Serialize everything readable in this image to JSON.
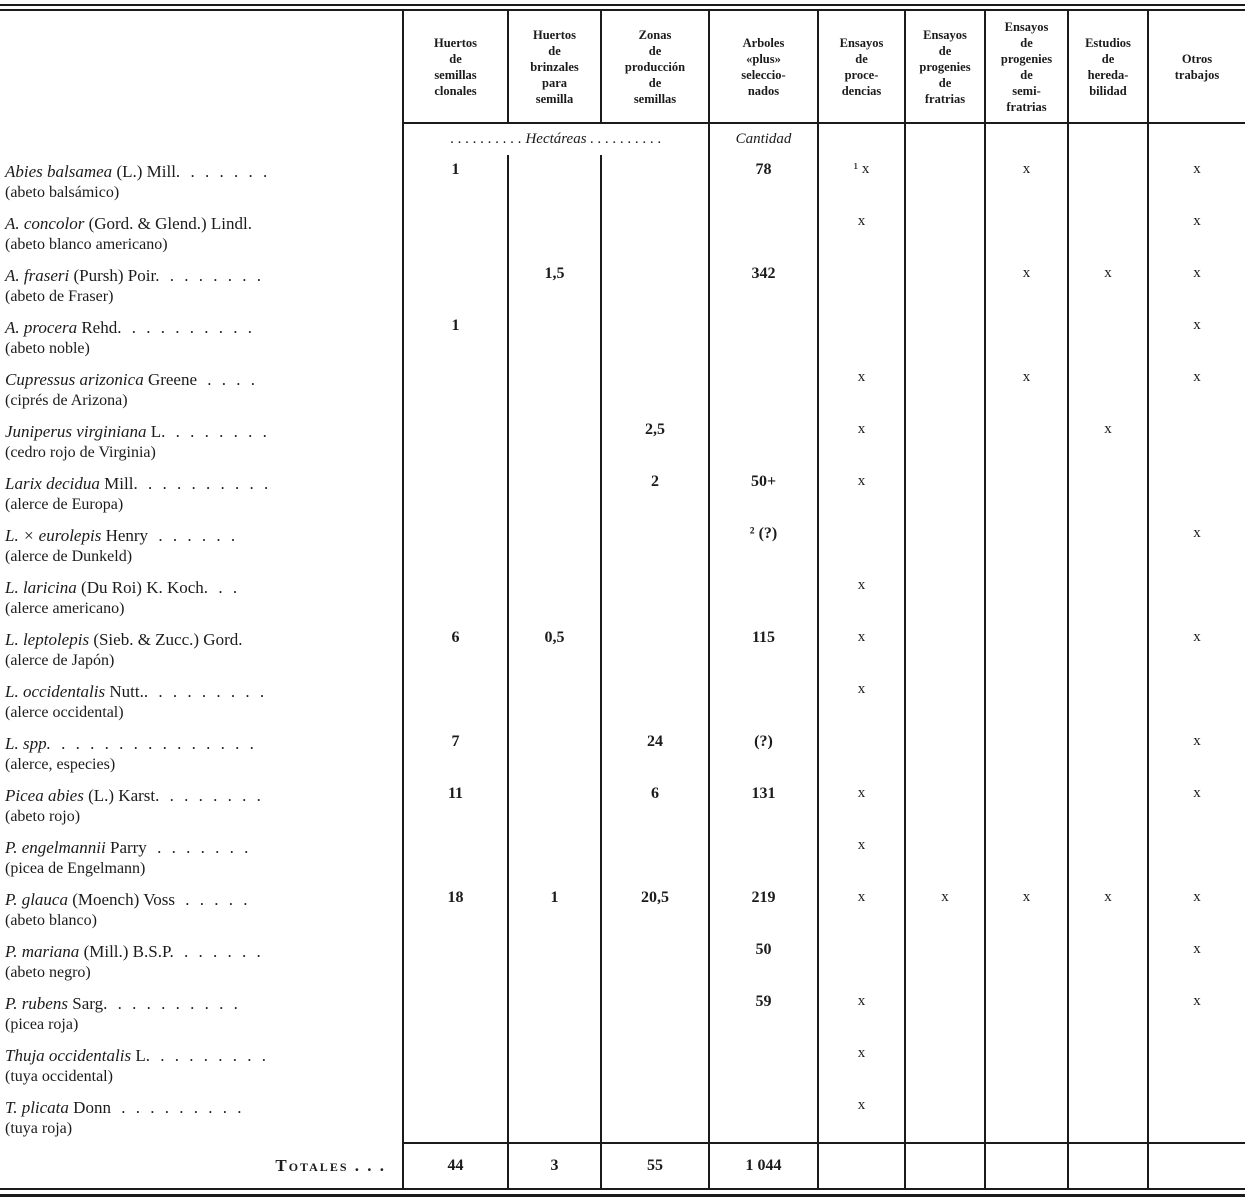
{
  "page": {
    "background": "#ffffff",
    "ink": "#1b1b1b"
  },
  "table": {
    "column_keys": [
      "huertos-semillas-clonales",
      "huertos-brinzales",
      "zonas-produccion",
      "arboles-plus",
      "ensayos-procedencias",
      "ensayos-progenies-fratrias",
      "ensayos-progenies-semifratrias",
      "estudios-heredabilidad",
      "otros-trabajos"
    ],
    "headers": [
      "Huertos\nde\nsemillas\nclonales",
      "Huertos\nde\nbrinzales\npara\nsemilla",
      "Zonas\nde\nproducción\nde\nsemillas",
      "Arboles\n«plus»\nseleccio-\nnados",
      "Ensayos\nde\nproce-\ndencias",
      "Ensayos\nde\nprogenies\nde\nfratrias",
      "Ensayos\nde\nprogenies\nde\nsemi-\nfratrias",
      "Estudios\nde\nhereda-\nbilidad",
      "Otros\ntrabajos"
    ],
    "subheader": {
      "hectareas": ". . . . . . . . . .  Hectáreas  . . . . . . . . . .",
      "cantidad": "Cantidad"
    },
    "rows": [
      {
        "latin": "Abies balsamea",
        "author": "(L.) Mill.",
        "dots": ". . . . . .",
        "common": "(abeto balsámico)",
        "values": [
          "1",
          "",
          "",
          "78",
          "¹ x",
          "",
          "x",
          "",
          "x"
        ]
      },
      {
        "latin": "A. concolor",
        "author": "(Gord. & Glend.) Lindl.",
        "dots": "",
        "common": "(abeto blanco americano)",
        "values": [
          "",
          "",
          "",
          "",
          "x",
          "",
          "",
          "",
          "x"
        ]
      },
      {
        "latin": "A. fraseri",
        "author": "(Pursh) Poir.",
        "dots": ". . . . . . .",
        "common": "(abeto de Fraser)",
        "values": [
          "",
          "1,5",
          "",
          "342",
          "",
          "",
          "x",
          "x",
          "x"
        ]
      },
      {
        "latin": "A. procera",
        "author": "Rehd.",
        "dots": ". . . . . . . . .",
        "common": "(abeto noble)",
        "values": [
          "1",
          "",
          "",
          "",
          "",
          "",
          "",
          "",
          "x"
        ]
      },
      {
        "latin": "Cupressus arizonica",
        "author": "Greene",
        "dots": ". . . .",
        "common": "(ciprés de Arizona)",
        "values": [
          "",
          "",
          "",
          "",
          "x",
          "",
          "x",
          "",
          "x"
        ]
      },
      {
        "latin": "Juniperus virginiana",
        "author": "L.",
        "dots": ". . . . . . .",
        "common": "(cedro rojo de Virginia)",
        "values": [
          "",
          "",
          "2,5",
          "",
          "x",
          "",
          "",
          "x",
          ""
        ]
      },
      {
        "latin": "Larix decidua",
        "author": "Mill.",
        "dots": ". . . . . . . . .",
        "common": "(alerce de Europa)",
        "values": [
          "",
          "",
          "2",
          "50+",
          "x",
          "",
          "",
          "",
          ""
        ]
      },
      {
        "latin": "L. × eurolepis",
        "author": "Henry",
        "dots": ". . . . . .",
        "common": "(alerce de Dunkeld)",
        "values": [
          "",
          "",
          "",
          "² (?)",
          "",
          "",
          "",
          "",
          "x"
        ]
      },
      {
        "latin": "L. laricina",
        "author": "(Du Roi) K. Koch.",
        "dots": ". .",
        "common": "(alerce americano)",
        "values": [
          "",
          "",
          "",
          "",
          "x",
          "",
          "",
          "",
          ""
        ]
      },
      {
        "latin": "L. leptolepis",
        "author": "(Sieb. & Zucc.) Gord.",
        "dots": "",
        "common": "(alerce de Japón)",
        "values": [
          "6",
          "0,5",
          "",
          "115",
          "x",
          "",
          "",
          "",
          "x"
        ]
      },
      {
        "latin": "L. occidentalis",
        "author": "Nutt..",
        "dots": ". . . . . . . .",
        "common": "(alerce occidental)",
        "values": [
          "",
          "",
          "",
          "",
          "x",
          "",
          "",
          "",
          ""
        ]
      },
      {
        "latin": "L. spp.",
        "author": "",
        "dots": ". . . . . . . . . . . . . .",
        "common": "(alerce, especies)",
        "values": [
          "7",
          "",
          "24",
          "(?)",
          "",
          "",
          "",
          "",
          "x"
        ]
      },
      {
        "latin": "Picea abies",
        "author": "(L.) Karst.",
        "dots": ". . . . . . .",
        "common": "(abeto rojo)",
        "values": [
          "11",
          "",
          "6",
          "131",
          "x",
          "",
          "",
          "",
          "x"
        ]
      },
      {
        "latin": "P. engelmannii",
        "author": "Parry",
        "dots": ". . . . . . .",
        "common": "(picea de Engelmann)",
        "values": [
          "",
          "",
          "",
          "",
          "x",
          "",
          "",
          "",
          ""
        ]
      },
      {
        "latin": "P. glauca",
        "author": "(Moench) Voss",
        "dots": ". . . . .",
        "common": "(abeto blanco)",
        "values": [
          "18",
          "1",
          "20,5",
          "219",
          "x",
          "x",
          "x",
          "x",
          "x"
        ]
      },
      {
        "latin": "P. mariana",
        "author": "(Mill.) B.S.P.",
        "dots": ". . . . . .",
        "common": "(abeto negro)",
        "values": [
          "",
          "",
          "",
          "50",
          "",
          "",
          "",
          "",
          "x"
        ]
      },
      {
        "latin": "P. rubens",
        "author": "Sarg.",
        "dots": ". . . . . . . . .",
        "common": "(picea roja)",
        "values": [
          "",
          "",
          "",
          "59",
          "x",
          "",
          "",
          "",
          "x"
        ]
      },
      {
        "latin": "Thuja occidentalis",
        "author": "L.",
        "dots": ". . . . . . . .",
        "common": "(tuya occidental)",
        "values": [
          "",
          "",
          "",
          "",
          "x",
          "",
          "",
          "",
          ""
        ]
      },
      {
        "latin": "T. plicata",
        "author": "Donn",
        "dots": ". . . . . . . . .",
        "common": "(tuya roja)",
        "values": [
          "",
          "",
          "",
          "",
          "x",
          "",
          "",
          "",
          ""
        ]
      }
    ],
    "totals": {
      "label": "Totales . . .",
      "values": [
        "44",
        "3",
        "55",
        "1 044",
        "",
        "",
        "",
        "",
        ""
      ]
    }
  }
}
